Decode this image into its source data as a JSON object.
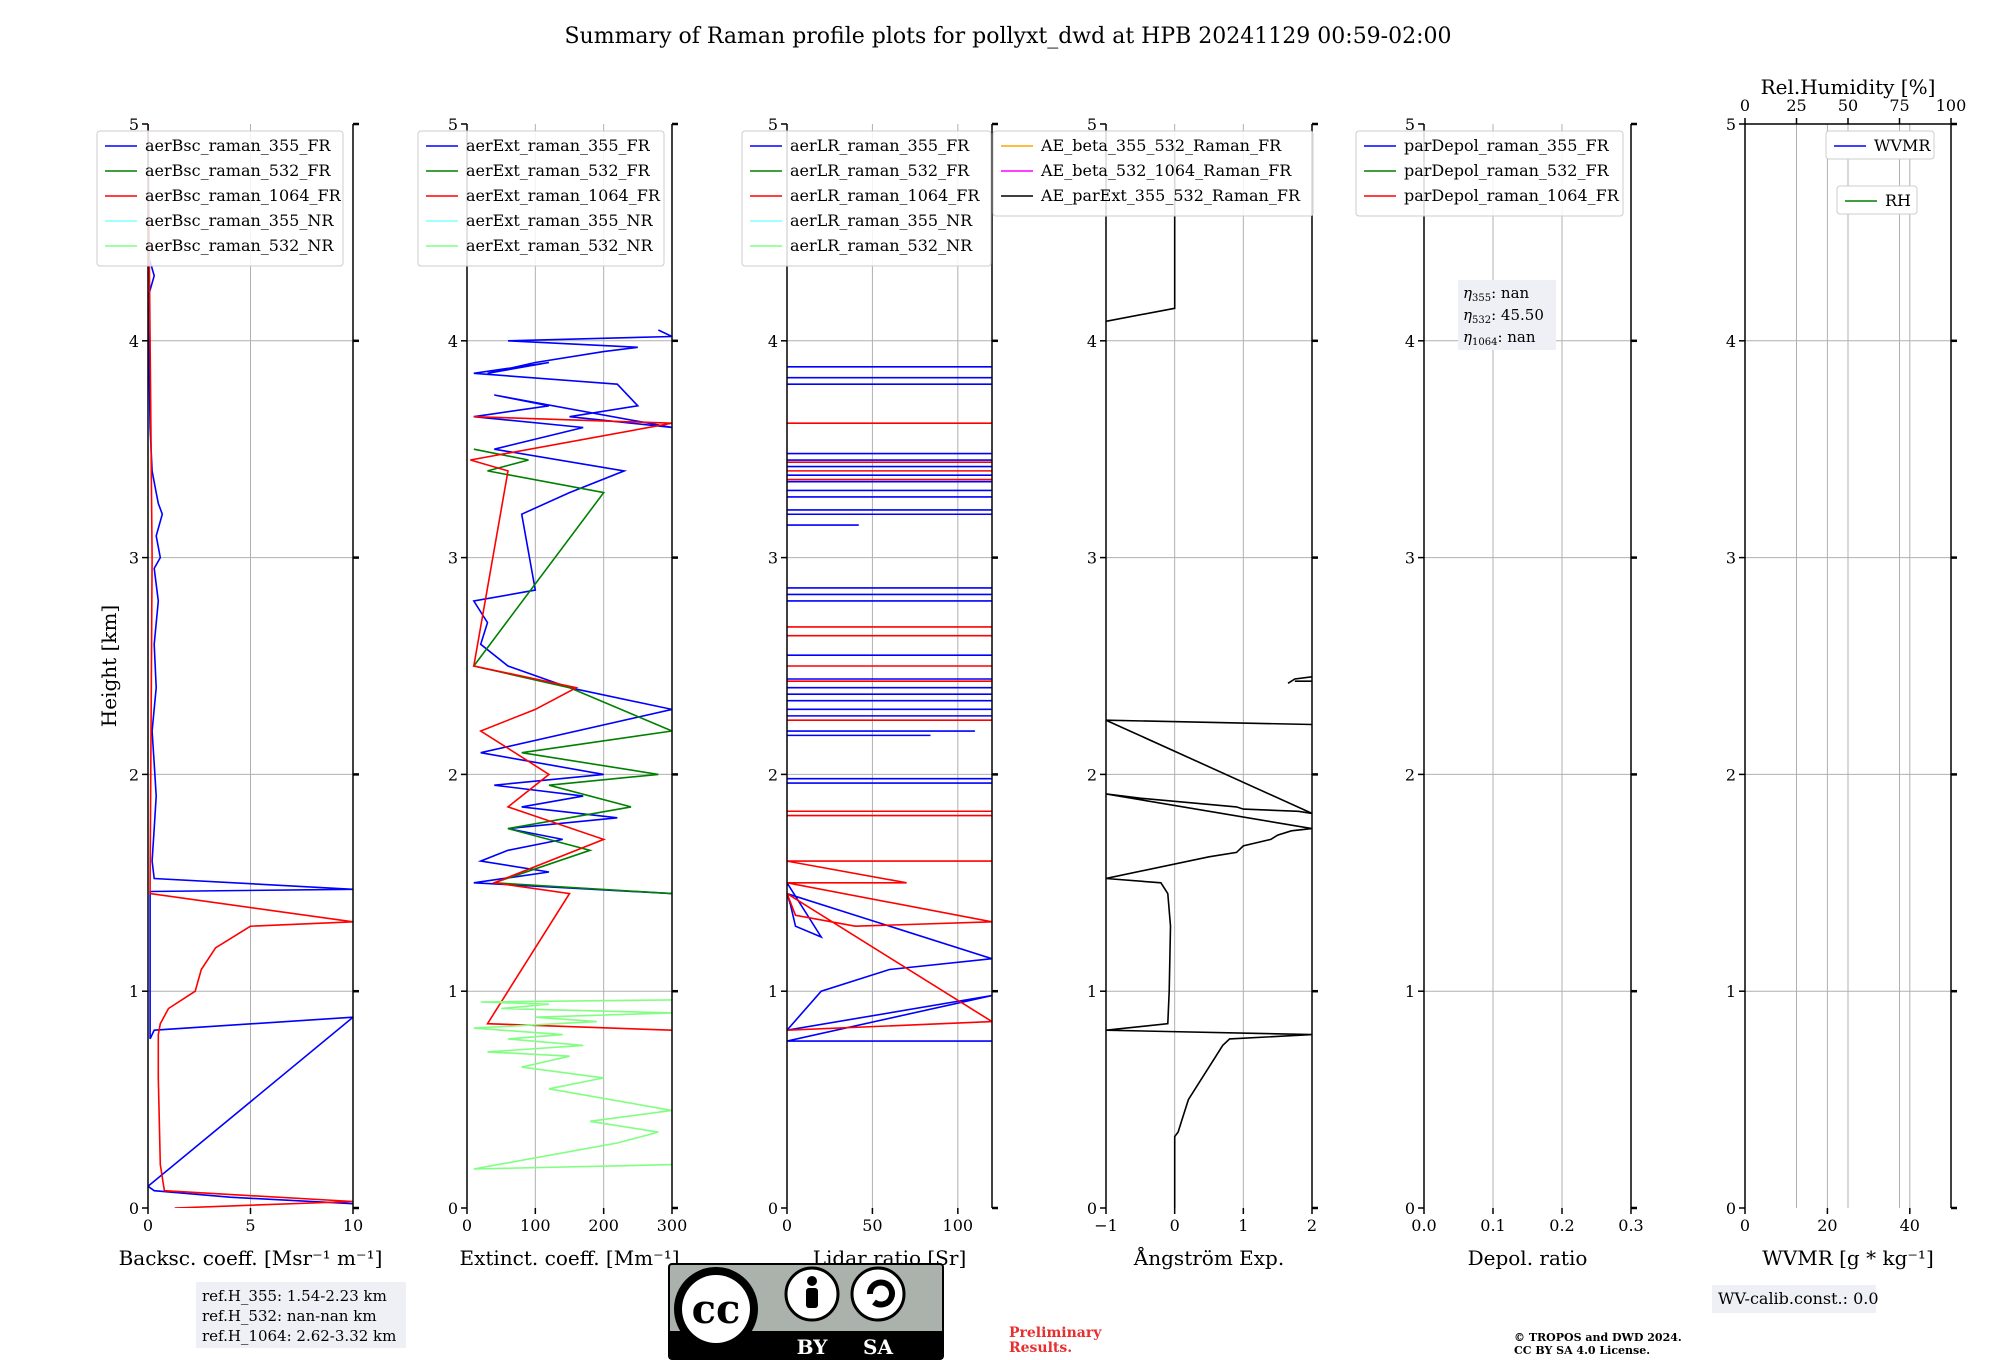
{
  "title": "Summary of Raman profile plots for pollyxt_dwd at HPB 20241129 00:59-02:00",
  "colors": {
    "b355": "#0000ff",
    "g532": "#008000",
    "r1064": "#ff0000",
    "c355nr": "#80ffff",
    "g532nr": "#80ff80",
    "orange": "#ffa500",
    "magenta": "#ff00ff",
    "black": "#000000",
    "grid": "#b0b0b0",
    "prelim": "#e82e2e"
  },
  "chart_data": [
    {
      "type": "line",
      "id": "bsc",
      "xlabel": "Backsc. coeff. [Msr⁻¹ m⁻¹]",
      "ylabel": "Height [km]",
      "xlim": [
        0,
        10
      ],
      "ylim": [
        0,
        5
      ],
      "xticks": [
        0,
        5,
        10
      ],
      "xtick_labels": [
        "0",
        "5",
        "10"
      ],
      "yticks": [
        0,
        1,
        2,
        3,
        4,
        5
      ],
      "ytick_labels": [
        "0",
        "1",
        "2",
        "3",
        "4",
        "5"
      ],
      "grid": true,
      "legend": "top-left",
      "series": [
        {
          "name": "aerBsc_raman_355_FR",
          "color": "#0000ff",
          "x": [
            10,
            4,
            0.3,
            0,
            10,
            0.3,
            0.1,
            0.1,
            10,
            0.3,
            0.2,
            0.3,
            0.4,
            0.3,
            0.2,
            0.4,
            0.3,
            0.5,
            0.3,
            0.6,
            0.4,
            0.7,
            0.5,
            0.4,
            0.2,
            0.1,
            0,
            0.3,
            0
          ],
          "y": [
            0.02,
            0.05,
            0.08,
            0.1,
            0.88,
            0.82,
            0.78,
            1.46,
            1.47,
            1.52,
            1.6,
            1.75,
            1.9,
            2.05,
            2.2,
            2.4,
            2.6,
            2.8,
            2.95,
            3.0,
            3.1,
            3.2,
            3.25,
            3.3,
            3.4,
            3.6,
            4.2,
            4.3,
            4.4
          ]
        },
        {
          "name": "aerBsc_raman_532_FR",
          "color": "#008000",
          "x": [],
          "y": []
        },
        {
          "name": "aerBsc_raman_1064_FR",
          "color": "#ff0000",
          "x": [
            1.3,
            10,
            0.8,
            0.6,
            0.5,
            0.5,
            0.6,
            1.0,
            2.3,
            2.6,
            3.3,
            5.0,
            10,
            0.1,
            0.1,
            0.2,
            0.1,
            0
          ],
          "y": [
            0.0,
            0.03,
            0.08,
            0.2,
            0.6,
            0.8,
            0.85,
            0.92,
            1.0,
            1.1,
            1.2,
            1.3,
            1.32,
            1.45,
            1.5,
            3.0,
            4.0,
            5.0
          ]
        },
        {
          "name": "aerBsc_raman_355_NR",
          "color": "#80ffff",
          "x": [],
          "y": []
        },
        {
          "name": "aerBsc_raman_532_NR",
          "color": "#80ff80",
          "x": [],
          "y": []
        }
      ],
      "annotation": [
        "ref.H_355: 1.54-2.23 km",
        "ref.H_532: nan-nan km",
        "ref.H_1064: 2.62-3.32 km"
      ]
    },
    {
      "type": "line",
      "id": "ext",
      "xlabel": "Extinct. coeff. [Mm⁻¹]",
      "xlim": [
        0,
        300
      ],
      "ylim": [
        0,
        5
      ],
      "xticks": [
        0,
        100,
        200,
        300
      ],
      "xtick_labels": [
        "0",
        "100",
        "200",
        "300"
      ],
      "yticks": [
        0,
        1,
        2,
        3,
        4,
        5
      ],
      "ytick_labels": [
        "0",
        "1",
        "2",
        "3",
        "4",
        "5"
      ],
      "grid": true,
      "legend": "top-left",
      "series": [
        {
          "name": "aerExt_raman_355_FR",
          "color": "#0000ff",
          "x": [
            300,
            10,
            120,
            20,
            60,
            140,
            60,
            220,
            80,
            170,
            40,
            200,
            20,
            300,
            150,
            60,
            20,
            30,
            10,
            100,
            80,
            150,
            230,
            40,
            170,
            10,
            120,
            40,
            300,
            150,
            250,
            220,
            10,
            120,
            30,
            100,
            200,
            250,
            60,
            300,
            280
          ],
          "y": [
            1.45,
            1.5,
            1.55,
            1.6,
            1.65,
            1.7,
            1.75,
            1.8,
            1.85,
            1.9,
            1.95,
            2.0,
            2.1,
            2.3,
            2.4,
            2.5,
            2.6,
            2.7,
            2.8,
            2.85,
            3.2,
            3.3,
            3.4,
            3.5,
            3.6,
            3.65,
            3.7,
            3.75,
            3.6,
            3.65,
            3.7,
            3.8,
            3.85,
            3.9,
            3.85,
            3.9,
            3.95,
            3.97,
            4.0,
            4.02,
            4.05
          ]
        },
        {
          "name": "aerExt_raman_532_FR",
          "color": "#008000",
          "x": [
            300,
            40,
            180,
            60,
            240,
            120,
            280,
            80,
            300,
            150,
            10,
            200,
            30,
            90,
            10
          ],
          "y": [
            1.45,
            1.5,
            1.65,
            1.75,
            1.85,
            1.95,
            2.0,
            2.1,
            2.2,
            2.4,
            2.5,
            3.3,
            3.4,
            3.45,
            3.5
          ]
        },
        {
          "name": "aerExt_raman_1064_FR",
          "color": "#ff0000",
          "x": [
            300,
            30,
            150,
            40,
            200,
            60,
            120,
            20,
            100,
            160,
            10,
            60,
            5,
            300,
            10
          ],
          "y": [
            0.82,
            0.85,
            1.45,
            1.5,
            1.7,
            1.85,
            2.0,
            2.2,
            2.3,
            2.4,
            2.5,
            3.4,
            3.45,
            3.62,
            3.65
          ]
        },
        {
          "name": "aerExt_raman_355_NR",
          "color": "#80ffff",
          "x": [],
          "y": []
        },
        {
          "name": "aerExt_raman_532_NR",
          "color": "#80ff80",
          "x": [
            300,
            10,
            220,
            280,
            180,
            300,
            120,
            200,
            80,
            150,
            30,
            170,
            60,
            140,
            10,
            190,
            100,
            300,
            50,
            120,
            20,
            300
          ],
          "y": [
            0.2,
            0.18,
            0.3,
            0.35,
            0.4,
            0.45,
            0.55,
            0.6,
            0.65,
            0.7,
            0.72,
            0.75,
            0.78,
            0.8,
            0.83,
            0.86,
            0.88,
            0.9,
            0.92,
            0.94,
            0.95,
            0.96
          ]
        }
      ]
    },
    {
      "type": "line",
      "id": "lr",
      "xlabel": "Lidar ratio [Sr]",
      "xlim": [
        0,
        120
      ],
      "ylim": [
        0,
        5
      ],
      "xticks": [
        0,
        50,
        100
      ],
      "xtick_labels": [
        "0",
        "50",
        "100"
      ],
      "yticks": [
        0,
        1,
        2,
        3,
        4,
        5
      ],
      "ytick_labels": [
        "0",
        "1",
        "2",
        "3",
        "4",
        "5"
      ],
      "grid": true,
      "legend": "top-left",
      "series": [
        {
          "name": "aerLR_raman_355_FR",
          "color": "#0000ff",
          "x": [
            120,
            0,
            120,
            0,
            20,
            60,
            120,
            0,
            2,
            5,
            20,
            0
          ],
          "y": [
            0.77,
            0.77,
            0.98,
            0.82,
            1.0,
            1.1,
            1.15,
            1.45,
            1.4,
            1.3,
            1.25,
            1.5
          ]
        },
        {
          "name": "aerLR_raman_532_FR",
          "color": "#008000",
          "x": [],
          "y": []
        },
        {
          "name": "aerLR_raman_1064_FR",
          "color": "#ff0000",
          "x": [
            0,
            120,
            0,
            5,
            40,
            120,
            0,
            70,
            0,
            120
          ],
          "y": [
            0.82,
            0.86,
            1.45,
            1.35,
            1.3,
            1.32,
            1.5,
            1.5,
            1.6,
            1.6
          ]
        },
        {
          "name": "aerLR_raman_355_NR",
          "color": "#80ffff",
          "x": [],
          "y": []
        },
        {
          "name": "aerLR_raman_532_NR",
          "color": "#80ff80",
          "x": [],
          "y": []
        }
      ],
      "blue_segments": [
        [
          1.96,
          120
        ],
        [
          1.98,
          120
        ],
        [
          2.18,
          84
        ],
        [
          2.2,
          110
        ],
        [
          2.27,
          120
        ],
        [
          2.3,
          120
        ],
        [
          2.34,
          120
        ],
        [
          2.37,
          120
        ],
        [
          2.4,
          120
        ],
        [
          2.44,
          120
        ],
        [
          2.55,
          120
        ],
        [
          2.8,
          120
        ],
        [
          2.83,
          120
        ],
        [
          2.86,
          120
        ],
        [
          3.15,
          42
        ],
        [
          3.2,
          120
        ],
        [
          3.22,
          120
        ],
        [
          3.28,
          120
        ],
        [
          3.31,
          120
        ],
        [
          3.35,
          120
        ],
        [
          3.38,
          120
        ],
        [
          3.42,
          120
        ],
        [
          3.45,
          120
        ],
        [
          3.48,
          120
        ],
        [
          3.8,
          120
        ],
        [
          3.83,
          120
        ],
        [
          3.88,
          120
        ]
      ],
      "red_segments": [
        [
          1.81,
          120
        ],
        [
          1.83,
          120
        ],
        [
          2.25,
          120
        ],
        [
          2.43,
          120
        ],
        [
          2.5,
          120
        ],
        [
          2.64,
          120
        ],
        [
          2.68,
          120
        ],
        [
          3.36,
          120
        ],
        [
          3.4,
          120
        ],
        [
          3.44,
          120
        ],
        [
          3.62,
          120
        ]
      ]
    },
    {
      "type": "line",
      "id": "ae",
      "xlabel": "Ångström Exp.",
      "xlim": [
        -1,
        2
      ],
      "ylim": [
        0,
        5
      ],
      "xticks": [
        -1,
        0,
        1,
        2
      ],
      "xtick_labels": [
        "−1",
        "0",
        "1",
        "2"
      ],
      "yticks": [
        0,
        1,
        2,
        3,
        4,
        5
      ],
      "ytick_labels": [
        "0",
        "1",
        "2",
        "3",
        "4",
        "5"
      ],
      "grid": true,
      "legend": "top-left",
      "series": [
        {
          "name": "AE_beta_355_532_Raman_FR",
          "color": "#ffa500",
          "x": [],
          "y": []
        },
        {
          "name": "AE_beta_532_1064_Raman_FR",
          "color": "#ff00ff",
          "x": [],
          "y": []
        },
        {
          "name": "AE_parExt_355_532_Raman_FR",
          "color": "#000000",
          "x": [
            0,
            0,
            0.05,
            0.1,
            0.2,
            0.4,
            0.6,
            0.7,
            0.8,
            2.0,
            -1,
            -0.1,
            -0.08,
            -0.06,
            -0.1,
            -0.2,
            -1,
            0.5,
            0.9,
            1.0,
            1.4,
            1.5,
            1.7,
            2.0,
            -1,
            -0.5,
            0.9,
            1.0,
            1.8,
            2.0,
            -1,
            2.0
          ],
          "y": [
            0.0,
            0.33,
            0.35,
            0.4,
            0.5,
            0.6,
            0.7,
            0.75,
            0.78,
            0.8,
            0.82,
            0.85,
            1.0,
            1.3,
            1.45,
            1.5,
            1.52,
            1.62,
            1.64,
            1.67,
            1.7,
            1.72,
            1.74,
            1.75,
            1.91,
            1.89,
            1.85,
            1.84,
            1.83,
            1.82,
            2.25,
            2.23
          ],
          "extra_segments": [
            {
              "x": [
                -1,
                0,
                0
              ],
              "y": [
                4.09,
                4.15,
                4.9
              ]
            },
            {
              "x": [
                1.65,
                1.75,
                2.0
              ],
              "y": [
                2.42,
                2.44,
                2.45
              ]
            },
            {
              "x": [
                1.75,
                2.0
              ],
              "y": [
                2.43,
                2.43
              ]
            }
          ]
        }
      ]
    },
    {
      "type": "line",
      "id": "depol",
      "xlabel": "Depol. ratio",
      "xlim": [
        0,
        0.3
      ],
      "ylim": [
        0,
        5
      ],
      "xticks": [
        0,
        0.1,
        0.2,
        0.3
      ],
      "xtick_labels": [
        "0.0",
        "0.1",
        "0.2",
        "0.3"
      ],
      "yticks": [
        0,
        1,
        2,
        3,
        4,
        5
      ],
      "ytick_labels": [
        "0",
        "1",
        "2",
        "3",
        "4",
        "5"
      ],
      "grid": true,
      "legend": "top-left",
      "series": [
        {
          "name": "parDepol_raman_355_FR",
          "color": "#0000ff",
          "x": [],
          "y": []
        },
        {
          "name": "parDepol_raman_532_FR",
          "color": "#008000",
          "x": [],
          "y": []
        },
        {
          "name": "parDepol_raman_1064_FR",
          "color": "#ff0000",
          "x": [],
          "y": []
        }
      ],
      "eta": [
        {
          "sub": "355",
          "value": ": nan"
        },
        {
          "sub": "532",
          "value": ": 45.50"
        },
        {
          "sub": "1064",
          "value": ": nan"
        }
      ]
    },
    {
      "type": "line",
      "id": "wv",
      "xlabel": "WVMR [g * kg⁻¹]",
      "top_xlabel": "Rel.Humidity [%]",
      "xlim": [
        0,
        50
      ],
      "ylim": [
        0,
        5
      ],
      "xticks": [
        0,
        20,
        40
      ],
      "xtick_labels": [
        "0",
        "20",
        "40"
      ],
      "top_xlim": [
        0,
        100
      ],
      "top_xticks": [
        0,
        25,
        50,
        75,
        100
      ],
      "top_xtick_labels": [
        "0",
        "25",
        "50",
        "75",
        "100"
      ],
      "yticks": [
        0,
        1,
        2,
        3,
        4,
        5
      ],
      "ytick_labels": [
        "0",
        "1",
        "2",
        "3",
        "4",
        "5"
      ],
      "grid": true,
      "series": [
        {
          "name": "WVMR",
          "color": "#0000ff",
          "x": [],
          "y": []
        },
        {
          "name": "RH",
          "color": "#008000",
          "x": [],
          "y": []
        }
      ],
      "annotation": [
        "WV-calib.const.: 0.0"
      ]
    }
  ],
  "footer": {
    "license_by": "BY",
    "license_sa": "SA",
    "license_cc": "cc",
    "preliminary": [
      "Preliminary",
      "Results."
    ],
    "copyright": [
      "© TROPOS and DWD 2024.",
      "CC BY SA 4.0 License."
    ]
  }
}
